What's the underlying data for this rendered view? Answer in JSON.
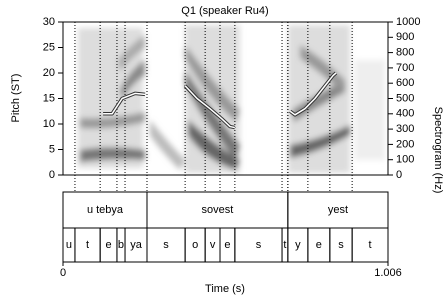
{
  "chart_data": {
    "type": "textgrid",
    "title": "Q1 (speaker Ru4)",
    "y_label": "Pitch (ST)",
    "y2_label": "Spectrogram (Hz)",
    "x_label": "Time (s)",
    "xlim": [
      0,
      1.006
    ],
    "xticks": [
      0,
      1.006
    ],
    "ylim": [
      0,
      30
    ],
    "yticks": [
      0,
      5,
      10,
      15,
      20,
      25,
      30
    ],
    "y2lim": [
      0,
      1000
    ],
    "y2ticks": [
      0,
      100,
      200,
      300,
      400,
      500,
      600,
      700,
      800,
      900,
      1000
    ],
    "series": [
      {
        "color": "#ffffff",
        "x": [
          0.124,
          0.152,
          0.183,
          0.223,
          0.254,
          null,
          0.378,
          0.415,
          0.455,
          0.492,
          0.517,
          0.532,
          null,
          0.703,
          0.718,
          0.749,
          0.78,
          0.811,
          0.836,
          0.845
        ],
        "values": [
          12.0,
          12.0,
          15.0,
          16.0,
          15.8,
          null,
          17.5,
          15.0,
          13.0,
          11.0,
          9.5,
          9.3,
          null,
          12.5,
          11.8,
          13.0,
          15.0,
          17.5,
          19.5,
          20.0
        ]
      }
    ],
    "tiers": [
      {
        "intervals": [
          {
            "label": "u tebya",
            "start": 0,
            "end": 0.26
          },
          {
            "label": "sovest",
            "start": 0.26,
            "end": 0.696
          },
          {
            "label": "yest",
            "start": 0.696,
            "end": 1.006
          }
        ]
      },
      {
        "intervals": [
          {
            "label": "u",
            "start": 0,
            "end": 0.037
          },
          {
            "label": "t",
            "start": 0.037,
            "end": 0.115
          },
          {
            "label": "e",
            "start": 0.115,
            "end": 0.167
          },
          {
            "label": "b",
            "start": 0.167,
            "end": 0.192
          },
          {
            "label": "ya",
            "start": 0.192,
            "end": 0.26
          },
          {
            "label": "s",
            "start": 0.26,
            "end": 0.378
          },
          {
            "label": "o",
            "start": 0.378,
            "end": 0.44
          },
          {
            "label": "v",
            "start": 0.44,
            "end": 0.486
          },
          {
            "label": "e",
            "start": 0.486,
            "end": 0.532
          },
          {
            "label": "s",
            "start": 0.532,
            "end": 0.678
          },
          {
            "label": "t",
            "start": 0.678,
            "end": 0.696
          },
          {
            "label": "y",
            "start": 0.696,
            "end": 0.758
          },
          {
            "label": "e",
            "start": 0.758,
            "end": 0.826
          },
          {
            "label": "s",
            "start": 0.826,
            "end": 0.895
          },
          {
            "label": "t",
            "start": 0.895,
            "end": 1.006
          }
        ]
      }
    ]
  }
}
